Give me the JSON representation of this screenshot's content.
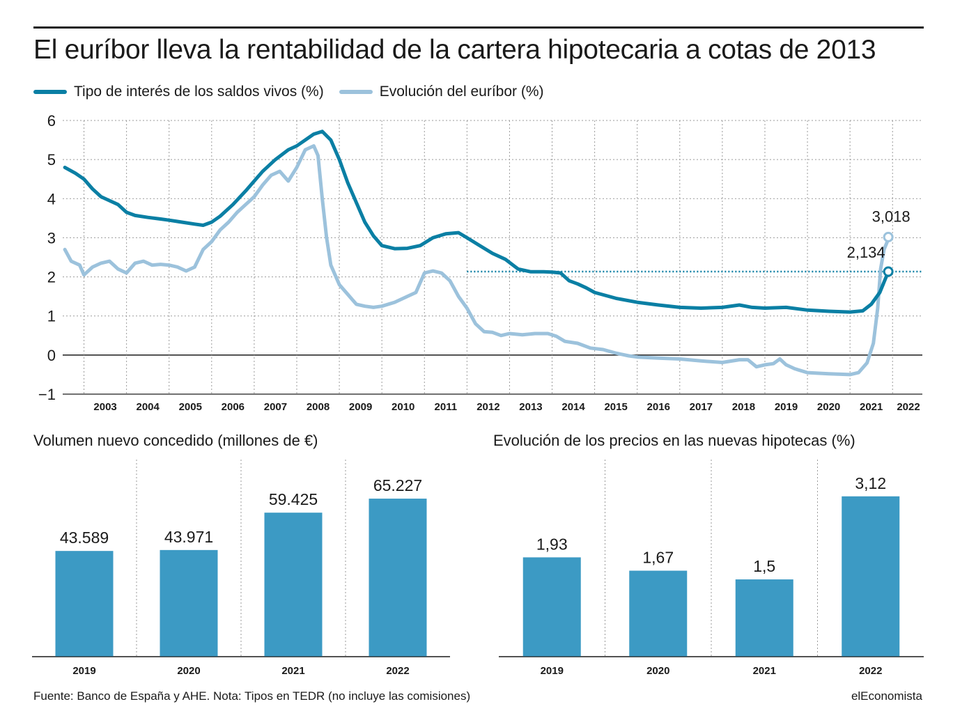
{
  "title": "El euríbor lleva la rentabilidad de la cartera hipotecaria a cotas de 2013",
  "legend": [
    {
      "label": "Tipo de interés de los saldos vivos (%)",
      "color": "#0a7fa4"
    },
    {
      "label": "Evolución del euríbor (%)",
      "color": "#9cc2dc"
    }
  ],
  "footer": {
    "source": "Fuente: Banco de España y AHE. Nota: Tipos en TEDR (no incluye las comisiones)",
    "brand": "elEconomista"
  },
  "chart_data": [
    {
      "type": "line",
      "title": "",
      "ylim": [
        -1,
        6
      ],
      "yticks": [
        "−1",
        "0",
        "1",
        "2",
        "3",
        "4",
        "5",
        "6"
      ],
      "xlim": [
        2002.5,
        2022.7
      ],
      "xticks": [
        "2003",
        "2004",
        "2005",
        "2006",
        "2007",
        "2008",
        "2009",
        "2010",
        "2011",
        "2012",
        "2013",
        "2014",
        "2015",
        "2016",
        "2017",
        "2018",
        "2019",
        "2020",
        "2021",
        "2022"
      ],
      "grid": true,
      "reference_line": {
        "value": 2.134,
        "from": 2012,
        "to": 2022.7,
        "color": "#0a7fa4"
      },
      "annotations": [
        {
          "text": "3,018",
          "series": 1,
          "x": 2021.9,
          "y": 3.018
        },
        {
          "text": "2,134",
          "series": 0,
          "x": 2021.9,
          "y": 2.134
        }
      ],
      "series": [
        {
          "name": "Tipo de interés de los saldos vivos (%)",
          "color": "#0a7fa4",
          "points": [
            [
              2002.55,
              4.8
            ],
            [
              2002.8,
              4.65
            ],
            [
              2003.0,
              4.5
            ],
            [
              2003.2,
              4.25
            ],
            [
              2003.4,
              4.05
            ],
            [
              2003.6,
              3.95
            ],
            [
              2003.8,
              3.85
            ],
            [
              2004.0,
              3.65
            ],
            [
              2004.2,
              3.57
            ],
            [
              2004.5,
              3.52
            ],
            [
              2004.8,
              3.48
            ],
            [
              2005.0,
              3.45
            ],
            [
              2005.3,
              3.4
            ],
            [
              2005.6,
              3.35
            ],
            [
              2005.8,
              3.32
            ],
            [
              2006.0,
              3.4
            ],
            [
              2006.2,
              3.55
            ],
            [
              2006.5,
              3.85
            ],
            [
              2006.8,
              4.2
            ],
            [
              2007.0,
              4.45
            ],
            [
              2007.2,
              4.7
            ],
            [
              2007.5,
              5.0
            ],
            [
              2007.8,
              5.25
            ],
            [
              2008.0,
              5.35
            ],
            [
              2008.2,
              5.5
            ],
            [
              2008.4,
              5.65
            ],
            [
              2008.6,
              5.72
            ],
            [
              2008.8,
              5.5
            ],
            [
              2009.0,
              5.0
            ],
            [
              2009.2,
              4.4
            ],
            [
              2009.4,
              3.9
            ],
            [
              2009.6,
              3.4
            ],
            [
              2009.8,
              3.05
            ],
            [
              2010.0,
              2.8
            ],
            [
              2010.3,
              2.72
            ],
            [
              2010.6,
              2.73
            ],
            [
              2010.9,
              2.8
            ],
            [
              2011.2,
              3.0
            ],
            [
              2011.5,
              3.1
            ],
            [
              2011.8,
              3.13
            ],
            [
              2012.0,
              3.0
            ],
            [
              2012.3,
              2.8
            ],
            [
              2012.6,
              2.6
            ],
            [
              2012.9,
              2.45
            ],
            [
              2013.2,
              2.2
            ],
            [
              2013.5,
              2.13
            ],
            [
              2013.8,
              2.13
            ],
            [
              2014.0,
              2.12
            ],
            [
              2014.2,
              2.1
            ],
            [
              2014.4,
              1.9
            ],
            [
              2014.6,
              1.82
            ],
            [
              2014.8,
              1.72
            ],
            [
              2015.0,
              1.6
            ],
            [
              2015.5,
              1.45
            ],
            [
              2016.0,
              1.35
            ],
            [
              2016.5,
              1.28
            ],
            [
              2017.0,
              1.22
            ],
            [
              2017.5,
              1.2
            ],
            [
              2018.0,
              1.22
            ],
            [
              2018.4,
              1.28
            ],
            [
              2018.7,
              1.22
            ],
            [
              2019.0,
              1.2
            ],
            [
              2019.5,
              1.22
            ],
            [
              2020.0,
              1.15
            ],
            [
              2020.5,
              1.12
            ],
            [
              2021.0,
              1.1
            ],
            [
              2021.3,
              1.13
            ],
            [
              2021.5,
              1.3
            ],
            [
              2021.7,
              1.6
            ],
            [
              2021.85,
              2.0
            ],
            [
              2021.92,
              2.134
            ]
          ]
        },
        {
          "name": "Evolución del euríbor (%)",
          "color": "#9cc2dc",
          "points": [
            [
              2002.55,
              2.7
            ],
            [
              2002.7,
              2.4
            ],
            [
              2002.9,
              2.3
            ],
            [
              2003.0,
              2.05
            ],
            [
              2003.2,
              2.25
            ],
            [
              2003.4,
              2.35
            ],
            [
              2003.6,
              2.4
            ],
            [
              2003.8,
              2.2
            ],
            [
              2004.0,
              2.1
            ],
            [
              2004.2,
              2.35
            ],
            [
              2004.4,
              2.4
            ],
            [
              2004.6,
              2.3
            ],
            [
              2004.8,
              2.32
            ],
            [
              2005.0,
              2.3
            ],
            [
              2005.2,
              2.25
            ],
            [
              2005.4,
              2.15
            ],
            [
              2005.6,
              2.25
            ],
            [
              2005.8,
              2.7
            ],
            [
              2006.0,
              2.9
            ],
            [
              2006.2,
              3.2
            ],
            [
              2006.4,
              3.4
            ],
            [
              2006.6,
              3.65
            ],
            [
              2006.8,
              3.85
            ],
            [
              2007.0,
              4.05
            ],
            [
              2007.2,
              4.35
            ],
            [
              2007.4,
              4.6
            ],
            [
              2007.6,
              4.7
            ],
            [
              2007.8,
              4.45
            ],
            [
              2008.0,
              4.8
            ],
            [
              2008.2,
              5.25
            ],
            [
              2008.4,
              5.35
            ],
            [
              2008.5,
              5.1
            ],
            [
              2008.6,
              4.0
            ],
            [
              2008.7,
              3.0
            ],
            [
              2008.8,
              2.3
            ],
            [
              2009.0,
              1.8
            ],
            [
              2009.2,
              1.55
            ],
            [
              2009.4,
              1.3
            ],
            [
              2009.6,
              1.25
            ],
            [
              2009.8,
              1.22
            ],
            [
              2010.0,
              1.25
            ],
            [
              2010.3,
              1.35
            ],
            [
              2010.6,
              1.5
            ],
            [
              2010.8,
              1.6
            ],
            [
              2011.0,
              2.1
            ],
            [
              2011.2,
              2.15
            ],
            [
              2011.4,
              2.1
            ],
            [
              2011.6,
              1.9
            ],
            [
              2011.8,
              1.5
            ],
            [
              2012.0,
              1.2
            ],
            [
              2012.2,
              0.8
            ],
            [
              2012.4,
              0.6
            ],
            [
              2012.6,
              0.58
            ],
            [
              2012.8,
              0.5
            ],
            [
              2013.0,
              0.55
            ],
            [
              2013.3,
              0.52
            ],
            [
              2013.6,
              0.55
            ],
            [
              2013.9,
              0.55
            ],
            [
              2014.1,
              0.48
            ],
            [
              2014.3,
              0.35
            ],
            [
              2014.6,
              0.3
            ],
            [
              2014.9,
              0.18
            ],
            [
              2015.2,
              0.14
            ],
            [
              2015.5,
              0.05
            ],
            [
              2015.8,
              -0.02
            ],
            [
              2016.0,
              -0.05
            ],
            [
              2016.5,
              -0.08
            ],
            [
              2017.0,
              -0.1
            ],
            [
              2017.5,
              -0.15
            ],
            [
              2018.0,
              -0.19
            ],
            [
              2018.4,
              -0.12
            ],
            [
              2018.6,
              -0.12
            ],
            [
              2018.8,
              -0.3
            ],
            [
              2019.0,
              -0.25
            ],
            [
              2019.2,
              -0.22
            ],
            [
              2019.35,
              -0.1
            ],
            [
              2019.5,
              -0.25
            ],
            [
              2019.7,
              -0.35
            ],
            [
              2020.0,
              -0.45
            ],
            [
              2020.5,
              -0.48
            ],
            [
              2021.0,
              -0.5
            ],
            [
              2021.2,
              -0.45
            ],
            [
              2021.4,
              -0.2
            ],
            [
              2021.55,
              0.3
            ],
            [
              2021.65,
              1.2
            ],
            [
              2021.72,
              2.2
            ],
            [
              2021.8,
              2.7
            ],
            [
              2021.92,
              3.018
            ]
          ]
        }
      ]
    },
    {
      "type": "bar",
      "title": "Volumen nuevo concedido (millones de €)",
      "categories": [
        "2019",
        "2020",
        "2021",
        "2022"
      ],
      "values": [
        43589,
        43971,
        59425,
        65227
      ],
      "labels": [
        "43.589",
        "43.971",
        "59.425",
        "65.227"
      ],
      "color": "#3c9ac4",
      "ylim": [
        0,
        70000
      ]
    },
    {
      "type": "bar",
      "title": "Evolución de los precios en las nuevas hipotecas (%)",
      "categories": [
        "2019",
        "2020",
        "2021",
        "2022"
      ],
      "values": [
        1.93,
        1.67,
        1.5,
        3.12
      ],
      "labels": [
        "1,93",
        "1,67",
        "1,5",
        "3,12"
      ],
      "color": "#3c9ac4",
      "ylim": [
        0,
        3.3
      ]
    }
  ]
}
